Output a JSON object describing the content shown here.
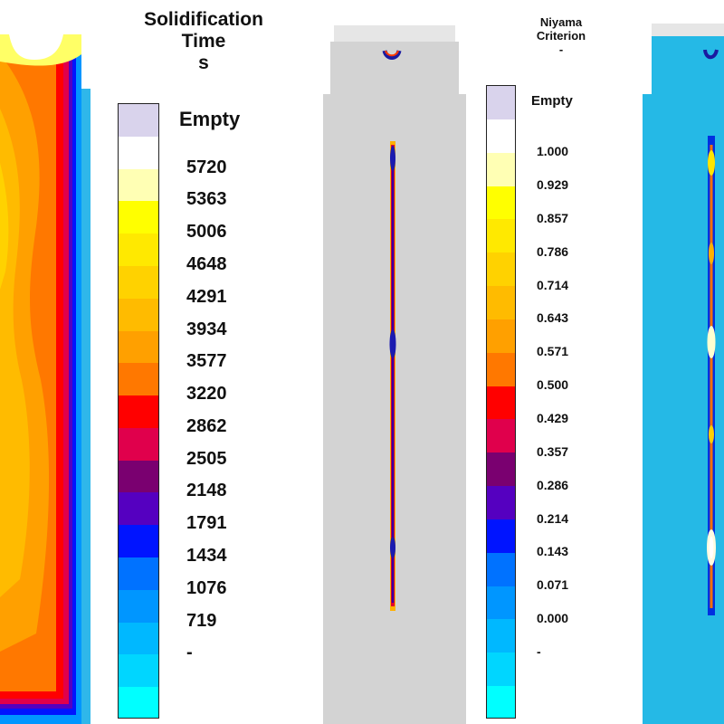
{
  "legend_left": {
    "title_lines": [
      "Solidification",
      "Time",
      "s"
    ],
    "empty_label": "Empty",
    "labels": [
      "5720",
      "5363",
      "5006",
      "4648",
      "4291",
      "3934",
      "3577",
      "3220",
      "2862",
      "2505",
      "2148",
      "1791",
      "1434",
      "1076",
      "719",
      "-"
    ],
    "colors": [
      "#d9d3ec",
      "#ffffff",
      "#ffffb4",
      "#ffff00",
      "#ffe900",
      "#ffd200",
      "#ffbb00",
      "#ffa000",
      "#ff7800",
      "#ff0000",
      "#e0004c",
      "#7a0070",
      "#5500c0",
      "#0014ff",
      "#0072ff",
      "#0096ff",
      "#00b8ff",
      "#00d6ff",
      "#00ffff"
    ]
  },
  "legend_right": {
    "title_lines": [
      "Niyama",
      "Criterion",
      "-"
    ],
    "empty_label": "Empty",
    "labels": [
      "1.000",
      "0.929",
      "0.857",
      "0.786",
      "0.714",
      "0.643",
      "0.571",
      "0.500",
      "0.429",
      "0.357",
      "0.286",
      "0.214",
      "0.143",
      "0.071",
      "0.000",
      "-"
    ],
    "colors": [
      "#d9d3ec",
      "#ffffff",
      "#ffffb4",
      "#ffff00",
      "#ffe900",
      "#ffd200",
      "#ffbb00",
      "#ffa000",
      "#ff7800",
      "#ff0000",
      "#e0004c",
      "#7a0070",
      "#5500c0",
      "#0014ff",
      "#0072ff",
      "#0096ff",
      "#00b8ff",
      "#00d6ff",
      "#00ffff"
    ]
  },
  "colors": {
    "casting_gray": "#d3d3d3",
    "casting_blue": "#25b9e6",
    "riser_top": "#e6e6e6"
  }
}
